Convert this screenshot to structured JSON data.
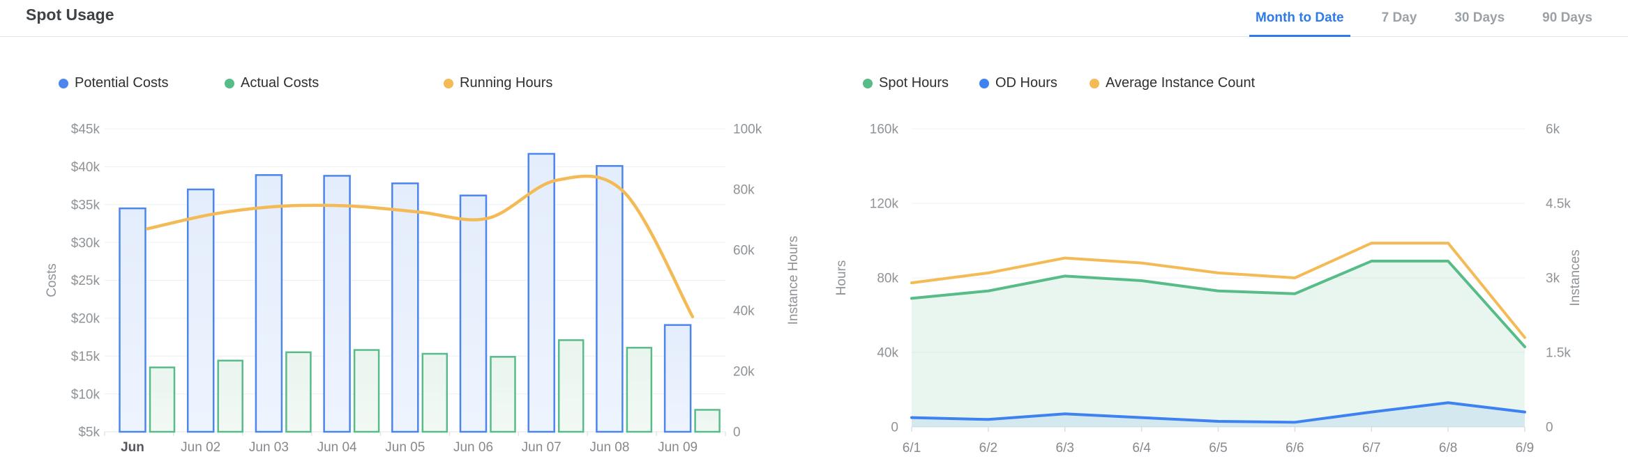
{
  "header": {
    "title": "Spot Usage",
    "tabs": [
      {
        "label": "Month to Date",
        "active": true
      },
      {
        "label": "7 Day",
        "active": false
      },
      {
        "label": "30 Days",
        "active": false
      },
      {
        "label": "90 Days",
        "active": false
      }
    ]
  },
  "colors": {
    "accent_blue": "#2e7be8",
    "series_blue": "#4c85ee",
    "series_green": "#58bc89",
    "series_orange": "#f4ba55",
    "gridline": "#eeeff1",
    "axis_line": "#e4e6e9",
    "tick_label": "#8e9398",
    "x_label": "#85898e",
    "x_label_first": "#54585c"
  },
  "chart_data": [
    {
      "type": "bar",
      "categories": [
        "Jun",
        "Jun 02",
        "Jun 03",
        "Jun 04",
        "Jun 05",
        "Jun 06",
        "Jun 07",
        "Jun 08",
        "Jun 09"
      ],
      "series": [
        {
          "name": "Potential Costs",
          "type": "bar",
          "axis": "left",
          "color": "#4c85ee",
          "values": [
            34500,
            37000,
            38900,
            38800,
            37800,
            36200,
            41700,
            40100,
            19100
          ]
        },
        {
          "name": "Actual Costs",
          "type": "bar",
          "axis": "left",
          "color": "#58bc89",
          "values": [
            13500,
            14400,
            15500,
            15800,
            15300,
            14900,
            17100,
            16100,
            7900
          ]
        },
        {
          "name": "Running Hours",
          "type": "line",
          "axis": "right",
          "color": "#f4ba55",
          "values": [
            67000,
            72000,
            74500,
            74500,
            72500,
            70500,
            83000,
            79000,
            38000
          ]
        }
      ],
      "left_axis": {
        "label": "Costs",
        "min": 5000,
        "max": 45000,
        "ticks": [
          "$45k",
          "$40k",
          "$35k",
          "$30k",
          "$25k",
          "$20k",
          "$15k",
          "$10k",
          "$5k"
        ]
      },
      "right_axis": {
        "label": "Instance Hours",
        "min": 0,
        "max": 100000,
        "ticks": [
          "100k",
          "80k",
          "60k",
          "40k",
          "20k",
          "0"
        ]
      },
      "grid": true,
      "legend_position": "top"
    },
    {
      "type": "area",
      "categories": [
        "6/1",
        "6/2",
        "6/3",
        "6/4",
        "6/5",
        "6/6",
        "6/7",
        "6/8",
        "6/9"
      ],
      "series": [
        {
          "name": "Spot Hours",
          "type": "area",
          "axis": "left",
          "color": "#58bc89",
          "fill_opacity": 0.13,
          "values": [
            69000,
            73000,
            81000,
            78500,
            73000,
            71500,
            89000,
            89000,
            43000
          ]
        },
        {
          "name": "OD Hours",
          "type": "area",
          "axis": "left",
          "color": "#3e81f1",
          "fill_opacity": 0.12,
          "values": [
            5000,
            4000,
            7000,
            5000,
            3000,
            2500,
            8000,
            13000,
            8000
          ]
        },
        {
          "name": "Average Instance Count",
          "type": "line",
          "axis": "right",
          "color": "#f4ba55",
          "values": [
            2900,
            3100,
            3400,
            3300,
            3100,
            3000,
            3700,
            3700,
            1800
          ]
        }
      ],
      "left_axis": {
        "label": "Hours",
        "min": 0,
        "max": 160000,
        "ticks": [
          "160k",
          "120k",
          "80k",
          "40k",
          "0"
        ]
      },
      "right_axis": {
        "label": "Instances",
        "min": 0,
        "max": 6000,
        "ticks": [
          "6k",
          "4.5k",
          "3k",
          "1.5k",
          "0"
        ]
      },
      "grid": true,
      "legend_position": "top"
    }
  ]
}
